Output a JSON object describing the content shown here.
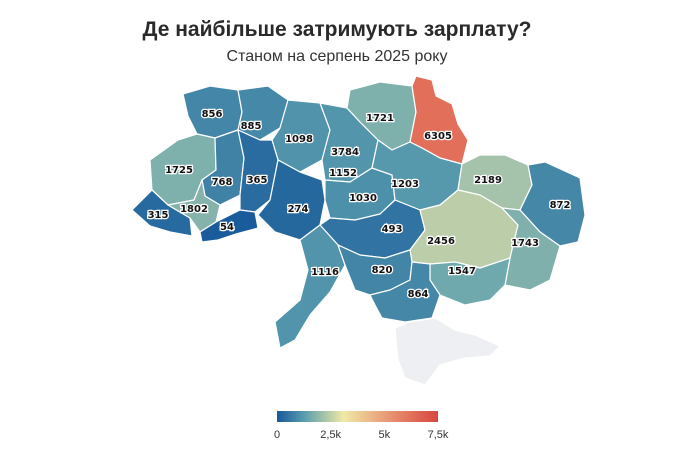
{
  "title": "Де найбільше затримують зарплату?",
  "subtitle": "Станом на серпень 2025 року",
  "chart_data": {
    "type": "choropleth",
    "regions": [
      {
        "name": "Volyn",
        "value": 856
      },
      {
        "name": "Rivne",
        "value": 885
      },
      {
        "name": "Zhytomyr",
        "value": 1098
      },
      {
        "name": "Kyiv city",
        "value": 3784
      },
      {
        "name": "Kyiv oblast",
        "value": 1152
      },
      {
        "name": "Chernihiv",
        "value": 1721
      },
      {
        "name": "Sumy",
        "value": 6305
      },
      {
        "name": "Lviv",
        "value": 1725
      },
      {
        "name": "Ternopil",
        "value": 768
      },
      {
        "name": "Khmelnytskyi",
        "value": 365
      },
      {
        "name": "Vinnytsia",
        "value": 274
      },
      {
        "name": "Cherkasy",
        "value": 1030
      },
      {
        "name": "Poltava",
        "value": 1203
      },
      {
        "name": "Kharkiv",
        "value": 2189
      },
      {
        "name": "Luhansk",
        "value": 872
      },
      {
        "name": "Zakarpattia",
        "value": 315
      },
      {
        "name": "Ivano-Frankivsk",
        "value": 1802
      },
      {
        "name": "Chernivtsi",
        "value": 54
      },
      {
        "name": "Kirovohrad",
        "value": 493
      },
      {
        "name": "Dnipropetrovsk",
        "value": 2456
      },
      {
        "name": "Donetsk",
        "value": 1743
      },
      {
        "name": "Zaporizhzhia",
        "value": 1547
      },
      {
        "name": "Odesa",
        "value": 1116
      },
      {
        "name": "Mykolaiv",
        "value": 820
      },
      {
        "name": "Kherson",
        "value": 864
      },
      {
        "name": "Crimea",
        "value": null
      }
    ],
    "legend": {
      "ticks": [
        {
          "value": 0,
          "label": "0"
        },
        {
          "value": 2500,
          "label": "2,5k"
        },
        {
          "value": 5000,
          "label": "5k"
        },
        {
          "value": 7500,
          "label": "7,5k"
        }
      ],
      "range": [
        0,
        7500
      ]
    },
    "colors": {
      "low": "#17599a",
      "mid_low": "#5b9eae",
      "mid": "#f0e9a6",
      "mid_high": "#e6876a",
      "high": "#d8453d",
      "no_data": "#eeeff2"
    }
  }
}
